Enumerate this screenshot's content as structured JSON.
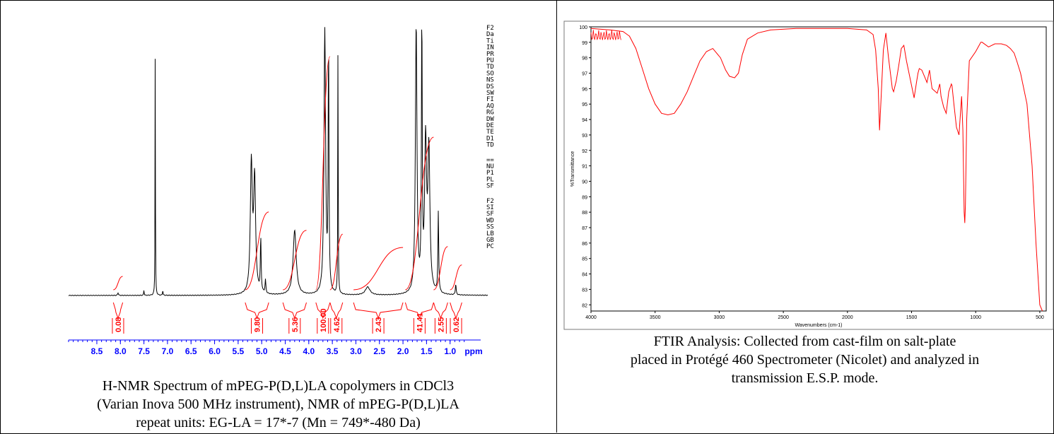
{
  "nmr": {
    "caption_lines": [
      "H-NMR Spectrum of mPEG-P(D,L)LA copolymers in CDCl3",
      "(Varian Inova 500 MHz instrument), NMR of mPEG-P(D,L)LA",
      "repeat units: EG-LA = 17*-7 (Mn = 749*-480 Da)"
    ],
    "param_labels": [
      "F2",
      "Da",
      "Ti",
      "IN",
      "PR",
      "PU",
      "TD",
      "SO",
      "NS",
      "DS",
      "SW",
      "FI",
      "AQ",
      "RG",
      "DW",
      "DE",
      "TE",
      "D1",
      "TD",
      "==",
      "NU",
      "P1",
      "PL",
      "SF",
      "F2",
      "SI",
      "SF",
      "WD",
      "SS",
      "LB",
      "GB",
      "PC"
    ],
    "chart_data": {
      "type": "line",
      "xlabel": "ppm",
      "x_reversed": true,
      "xlim": [
        9.1,
        0.2
      ],
      "x_ticks": [
        8.5,
        8.0,
        7.5,
        7.0,
        6.5,
        6.0,
        5.5,
        5.0,
        4.5,
        4.0,
        3.5,
        3.0,
        2.5,
        2.0,
        1.5,
        1.0
      ],
      "tick_label_suffix_after": "ppm",
      "peaks": [
        {
          "ppm": 8.05,
          "height": 0.01,
          "width": 0.01
        },
        {
          "ppm": 7.5,
          "height": 0.02,
          "width": 0.006
        },
        {
          "ppm": 7.26,
          "height": 1.0,
          "width": 0.004
        },
        {
          "ppm": 7.1,
          "height": 0.02,
          "width": 0.006
        },
        {
          "ppm": 5.22,
          "height": 0.48,
          "width": 0.025
        },
        {
          "ppm": 5.15,
          "height": 0.42,
          "width": 0.025
        },
        {
          "ppm": 5.02,
          "height": 0.2,
          "width": 0.01
        },
        {
          "ppm": 4.92,
          "height": 0.05,
          "width": 0.01
        },
        {
          "ppm": 4.3,
          "height": 0.24,
          "width": 0.04
        },
        {
          "ppm": 3.66,
          "height": 1.0,
          "width": 0.02
        },
        {
          "ppm": 3.58,
          "height": 0.9,
          "width": 0.01
        },
        {
          "ppm": 3.38,
          "height": 1.0,
          "width": 0.005
        },
        {
          "ppm": 2.75,
          "height": 0.03,
          "width": 0.06
        },
        {
          "ppm": 1.72,
          "height": 1.0,
          "width": 0.02
        },
        {
          "ppm": 1.6,
          "height": 1.0,
          "width": 0.01
        },
        {
          "ppm": 1.52,
          "height": 0.55,
          "width": 0.025
        },
        {
          "ppm": 1.45,
          "height": 0.52,
          "width": 0.025
        },
        {
          "ppm": 1.25,
          "height": 0.3,
          "width": 0.01
        },
        {
          "ppm": 0.88,
          "height": 0.04,
          "width": 0.01
        }
      ],
      "integrals": [
        {
          "label": "0.08",
          "from": 8.15,
          "to": 7.95
        },
        {
          "label": "9.80",
          "from": 5.35,
          "to": 4.85
        },
        {
          "label": "5.36",
          "from": 4.55,
          "to": 4.05
        },
        {
          "label": "100.00",
          "from": 3.85,
          "to": 3.55
        },
        {
          "label": "4.62",
          "from": 3.55,
          "to": 3.28
        },
        {
          "label": "2.43",
          "from": 3.05,
          "to": 2.0
        },
        {
          "label": "41.41",
          "from": 1.95,
          "to": 1.35
        },
        {
          "label": "2.55",
          "from": 1.35,
          "to": 1.05
        },
        {
          "label": "0.62",
          "from": 1.0,
          "to": 0.75
        }
      ],
      "colors": {
        "spectrum": "#000000",
        "integral": "#ff0000",
        "axis": "#0000ff",
        "label": "#ff0000"
      }
    }
  },
  "ftir": {
    "caption_lines": [
      "FTIR Analysis: Collected from cast-film on salt-plate",
      "placed in Protégé 460 Spectrometer (Nicolet) and analyzed in",
      "transmission E.S.P. mode."
    ],
    "chart_data": {
      "type": "line",
      "xlabel": "Wavenumbers (cm-1)",
      "ylabel": "%Transmittance",
      "xlim": [
        4000,
        450
      ],
      "ylim": [
        81.6,
        100
      ],
      "x_ticks": [
        4000,
        3500,
        3000,
        2500,
        2000,
        1500,
        1000,
        500
      ],
      "y_ticks": [
        82,
        83,
        84,
        85,
        86,
        87,
        88,
        89,
        90,
        91,
        92,
        93,
        94,
        95,
        96,
        97,
        98,
        99,
        100
      ],
      "series": [
        {
          "x": [
            4000,
            3850,
            3750,
            3700,
            3650,
            3600,
            3550,
            3500,
            3450,
            3400,
            3350,
            3300,
            3250,
            3200,
            3150,
            3100,
            3050,
            2990,
            2950,
            2920,
            2880,
            2850,
            2820,
            2780,
            2700,
            2600,
            2400,
            2200,
            2000,
            1850,
            1800,
            1780,
            1760,
            1750,
            1740,
            1720,
            1700,
            1680,
            1650,
            1640,
            1620,
            1600,
            1580,
            1560,
            1540,
            1500,
            1480,
            1460,
            1450,
            1440,
            1420,
            1400,
            1380,
            1370,
            1360,
            1340,
            1300,
            1280,
            1270,
            1250,
            1230,
            1210,
            1190,
            1185,
            1170,
            1150,
            1130,
            1110,
            1100,
            1090,
            1085,
            1080,
            1070,
            1050,
            1000,
            960,
            950,
            900,
            850,
            800,
            760,
            730,
            700,
            680,
            650,
            600,
            560,
            530,
            500,
            480
          ],
          "y": [
            99.9,
            99.8,
            99.7,
            99.4,
            98.6,
            97.3,
            96.0,
            95.0,
            94.4,
            94.3,
            94.4,
            95.0,
            95.8,
            96.8,
            97.8,
            98.4,
            98.6,
            98.0,
            97.2,
            96.8,
            96.7,
            97.0,
            98.2,
            99.2,
            99.6,
            99.8,
            99.9,
            99.9,
            99.9,
            99.8,
            99.5,
            98.5,
            96.0,
            93.3,
            95.0,
            98.5,
            99.6,
            98.0,
            96.0,
            95.8,
            96.5,
            97.5,
            98.6,
            98.8,
            97.8,
            96.2,
            95.4,
            96.5,
            97.0,
            97.3,
            97.2,
            96.8,
            96.4,
            96.8,
            97.2,
            96.0,
            95.7,
            96.3,
            95.5,
            94.8,
            94.4,
            95.8,
            96.3,
            96.2,
            95.0,
            93.5,
            93.0,
            95.5,
            93.3,
            88.0,
            87.3,
            88.5,
            94.0,
            97.8,
            98.4,
            99.0,
            99.0,
            98.7,
            98.9,
            98.9,
            98.8,
            98.6,
            98.3,
            97.8,
            97.0,
            95.0,
            91.0,
            86.0,
            82.0,
            81.6
          ],
          "color": "#ff0000"
        }
      ],
      "grid": false
    }
  }
}
